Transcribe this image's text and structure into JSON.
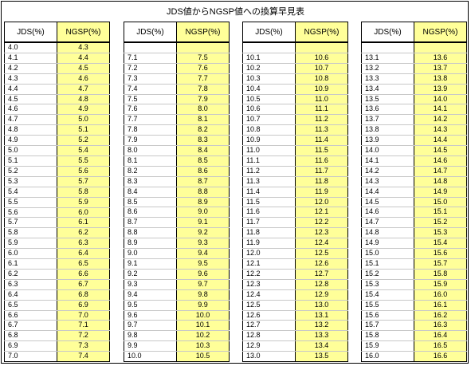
{
  "title": "JDS値からNGSP値への換算早見表",
  "header_jds": "JDS(%)",
  "header_ngsp": "NGSP(%)",
  "columns": [
    {
      "rows": [
        [
          "4.0",
          "4.3"
        ],
        [
          "4.1",
          "4.4"
        ],
        [
          "4.2",
          "4.5"
        ],
        [
          "4.3",
          "4.6"
        ],
        [
          "4.4",
          "4.7"
        ],
        [
          "4.5",
          "4.8"
        ],
        [
          "4.6",
          "4.9"
        ],
        [
          "4.7",
          "5.0"
        ],
        [
          "4.8",
          "5.1"
        ],
        [
          "4.9",
          "5.2"
        ],
        [
          "5.0",
          "5.4"
        ],
        [
          "5.1",
          "5.5"
        ],
        [
          "5.2",
          "5.6"
        ],
        [
          "5.3",
          "5.7"
        ],
        [
          "5.4",
          "5.8"
        ],
        [
          "5.5",
          "5.9"
        ],
        [
          "5.6",
          "6.0"
        ],
        [
          "5.7",
          "6.1"
        ],
        [
          "5.8",
          "6.2"
        ],
        [
          "5.9",
          "6.3"
        ],
        [
          "6.0",
          "6.4"
        ],
        [
          "6.1",
          "6.5"
        ],
        [
          "6.2",
          "6.6"
        ],
        [
          "6.3",
          "6.7"
        ],
        [
          "6.4",
          "6.8"
        ],
        [
          "6.5",
          "6.9"
        ],
        [
          "6.6",
          "7.0"
        ],
        [
          "6.7",
          "7.1"
        ],
        [
          "6.8",
          "7.2"
        ],
        [
          "6.9",
          "7.3"
        ],
        [
          "7.0",
          "7.4"
        ]
      ]
    },
    {
      "rows": [
        [
          "",
          ""
        ],
        [
          "7.1",
          "7.5"
        ],
        [
          "7.2",
          "7.6"
        ],
        [
          "7.3",
          "7.7"
        ],
        [
          "7.4",
          "7.8"
        ],
        [
          "7.5",
          "7.9"
        ],
        [
          "7.6",
          "8.0"
        ],
        [
          "7.7",
          "8.1"
        ],
        [
          "7.8",
          "8.2"
        ],
        [
          "7.9",
          "8.3"
        ],
        [
          "8.0",
          "8.4"
        ],
        [
          "8.1",
          "8.5"
        ],
        [
          "8.2",
          "8.6"
        ],
        [
          "8.3",
          "8.7"
        ],
        [
          "8.4",
          "8.8"
        ],
        [
          "8.5",
          "8.9"
        ],
        [
          "8.6",
          "9.0"
        ],
        [
          "8.7",
          "9.1"
        ],
        [
          "8.8",
          "9.2"
        ],
        [
          "8.9",
          "9.3"
        ],
        [
          "9.0",
          "9.4"
        ],
        [
          "9.1",
          "9.5"
        ],
        [
          "9.2",
          "9.6"
        ],
        [
          "9.3",
          "9.7"
        ],
        [
          "9.4",
          "9.8"
        ],
        [
          "9.5",
          "9.9"
        ],
        [
          "9.6",
          "10.0"
        ],
        [
          "9.7",
          "10.1"
        ],
        [
          "9.8",
          "10.2"
        ],
        [
          "9.9",
          "10.3"
        ],
        [
          "10.0",
          "10.5"
        ]
      ]
    },
    {
      "rows": [
        [
          "",
          ""
        ],
        [
          "10.1",
          "10.6"
        ],
        [
          "10.2",
          "10.7"
        ],
        [
          "10.3",
          "10.8"
        ],
        [
          "10.4",
          "10.9"
        ],
        [
          "10.5",
          "11.0"
        ],
        [
          "10.6",
          "11.1"
        ],
        [
          "10.7",
          "11.2"
        ],
        [
          "10.8",
          "11.3"
        ],
        [
          "10.9",
          "11.4"
        ],
        [
          "11.0",
          "11.5"
        ],
        [
          "11.1",
          "11.6"
        ],
        [
          "11.2",
          "11.7"
        ],
        [
          "11.3",
          "11.8"
        ],
        [
          "11.4",
          "11.9"
        ],
        [
          "11.5",
          "12.0"
        ],
        [
          "11.6",
          "12.1"
        ],
        [
          "11.7",
          "12.2"
        ],
        [
          "11.8",
          "12.3"
        ],
        [
          "11.9",
          "12.4"
        ],
        [
          "12.0",
          "12.5"
        ],
        [
          "12.1",
          "12.6"
        ],
        [
          "12.2",
          "12.7"
        ],
        [
          "12.3",
          "12.8"
        ],
        [
          "12.4",
          "12.9"
        ],
        [
          "12.5",
          "13.0"
        ],
        [
          "12.6",
          "13.1"
        ],
        [
          "12.7",
          "13.2"
        ],
        [
          "12.8",
          "13.3"
        ],
        [
          "12.9",
          "13.4"
        ],
        [
          "13.0",
          "13.5"
        ]
      ]
    },
    {
      "rows": [
        [
          "",
          ""
        ],
        [
          "13.1",
          "13.6"
        ],
        [
          "13.2",
          "13.7"
        ],
        [
          "13.3",
          "13.8"
        ],
        [
          "13.4",
          "13.9"
        ],
        [
          "13.5",
          "14.0"
        ],
        [
          "13.6",
          "14.1"
        ],
        [
          "13.7",
          "14.2"
        ],
        [
          "13.8",
          "14.3"
        ],
        [
          "13.9",
          "14.4"
        ],
        [
          "14.0",
          "14.5"
        ],
        [
          "14.1",
          "14.6"
        ],
        [
          "14.2",
          "14.7"
        ],
        [
          "14.3",
          "14.8"
        ],
        [
          "14.4",
          "14.9"
        ],
        [
          "14.5",
          "15.0"
        ],
        [
          "14.6",
          "15.1"
        ],
        [
          "14.7",
          "15.2"
        ],
        [
          "14.8",
          "15.3"
        ],
        [
          "14.9",
          "15.4"
        ],
        [
          "15.0",
          "15.6"
        ],
        [
          "15.1",
          "15.7"
        ],
        [
          "15.2",
          "15.8"
        ],
        [
          "15.3",
          "15.9"
        ],
        [
          "15.4",
          "16.0"
        ],
        [
          "15.5",
          "16.1"
        ],
        [
          "15.6",
          "16.2"
        ],
        [
          "15.7",
          "16.3"
        ],
        [
          "15.8",
          "16.4"
        ],
        [
          "15.9",
          "16.5"
        ],
        [
          "16.0",
          "16.6"
        ]
      ]
    }
  ]
}
